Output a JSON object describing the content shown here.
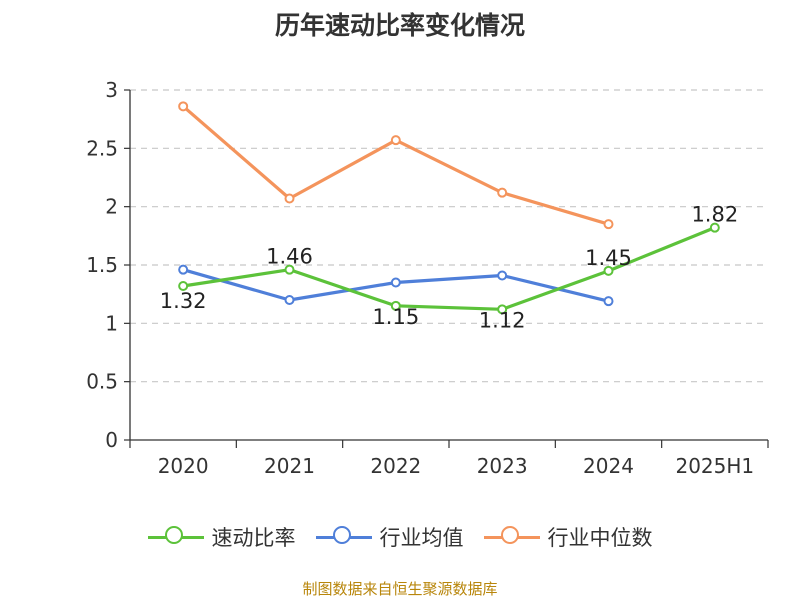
{
  "chart_data": {
    "type": "line",
    "title": "历年速动比率变化情况",
    "categories": [
      "2020",
      "2021",
      "2022",
      "2023",
      "2024",
      "2025H1"
    ],
    "ylim": [
      0,
      3
    ],
    "yticks": [
      "0",
      "0.5",
      "1",
      "1.5",
      "2",
      "2.5",
      "3"
    ],
    "ytick_values": [
      0,
      0.5,
      1,
      1.5,
      2,
      2.5,
      3
    ],
    "grid": "horizontal dashed",
    "legend_position": "bottom-center",
    "series": [
      {
        "name": "速动比率",
        "color": "#5cc23a",
        "values": [
          1.32,
          1.46,
          1.15,
          1.12,
          1.45,
          1.82
        ],
        "labels": [
          "1.32",
          "1.46",
          "1.15",
          "1.12",
          "1.45",
          "1.82"
        ]
      },
      {
        "name": "行业均值",
        "color": "#4f7fd9",
        "values": [
          1.46,
          1.2,
          1.35,
          1.41,
          1.19,
          null
        ]
      },
      {
        "name": "行业中位数",
        "color": "#f4945c",
        "values": [
          2.86,
          2.07,
          2.57,
          2.12,
          1.85,
          null
        ]
      }
    ],
    "source": "制图数据来自恒生聚源数据库"
  }
}
